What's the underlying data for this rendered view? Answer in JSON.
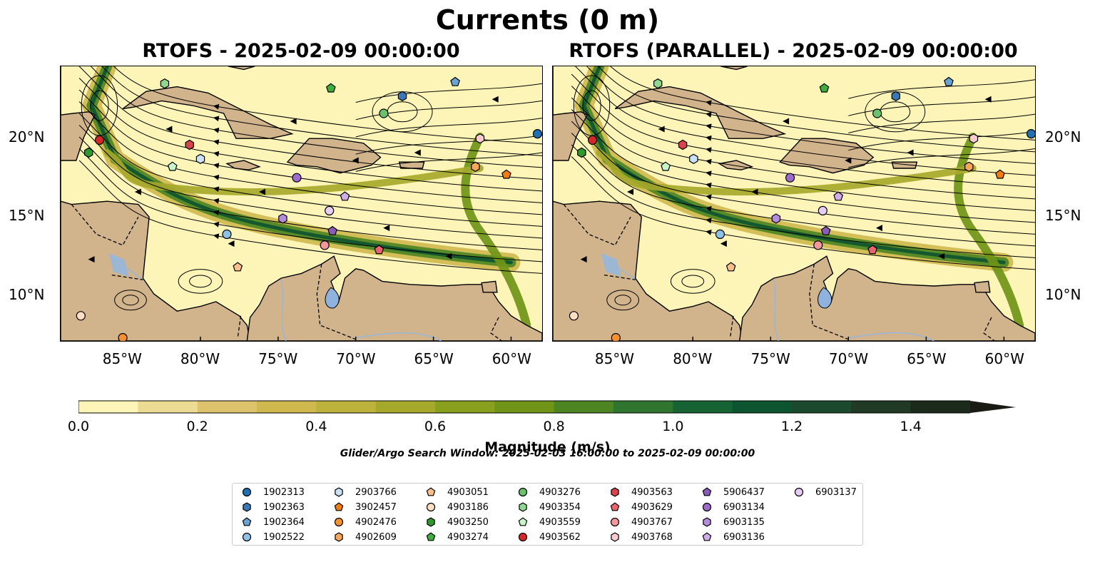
{
  "title": "Currents (0 m)",
  "panels": [
    {
      "title": "RTOFS - 2025-02-09 00:00:00"
    },
    {
      "title": "RTOFS (PARALLEL) - 2025-02-09 00:00:00"
    }
  ],
  "axes": {
    "lat_ticks": [
      "20°N",
      "15°N",
      "10°N"
    ],
    "lon_ticks": [
      "85°W",
      "80°W",
      "75°W",
      "70°W",
      "65°W",
      "60°W"
    ],
    "lon_range": [
      -89,
      -58
    ],
    "lat_range": [
      7,
      24.5
    ]
  },
  "colorbar": {
    "label": "Magnitude (m/s)",
    "ticks": [
      "0.0",
      "0.2",
      "0.4",
      "0.6",
      "0.8",
      "1.0",
      "1.2",
      "1.4"
    ],
    "range": [
      0,
      1.5
    ],
    "colors": [
      "#fdf5b8",
      "#ecdc93",
      "#ddc36c",
      "#cfb94e",
      "#bdb23b",
      "#a6a82b",
      "#89a01f",
      "#6f9418",
      "#4d8523",
      "#2f7530",
      "#166433",
      "#0d5430",
      "#1b4a2e",
      "#203a26",
      "#1c2a1c"
    ]
  },
  "search_window": "Glider/Argo Search Window: 2025-02-03 16:00:00 to 2025-02-09 00:00:00",
  "colors": {
    "land": "#d2b48c",
    "lakes": "#8fb3dd",
    "rivers": "#9bb7d4",
    "ocean_low": "#fdf5b8",
    "ocean_high": "#0d5430"
  },
  "legend": [
    {
      "id": "1902313",
      "marker": "circle",
      "color": "#1f6fb2"
    },
    {
      "id": "1902363",
      "marker": "hexagon",
      "color": "#3a78b5"
    },
    {
      "id": "1902364",
      "marker": "pentagon",
      "color": "#6aa2d4"
    },
    {
      "id": "1902522",
      "marker": "circle",
      "color": "#8fc0e6"
    },
    {
      "id": "2903766",
      "marker": "hexagon",
      "color": "#c9e2f5"
    },
    {
      "id": "3902457",
      "marker": "pentagon",
      "color": "#f07c12"
    },
    {
      "id": "4902476",
      "marker": "circle",
      "color": "#f5922f"
    },
    {
      "id": "4902609",
      "marker": "hexagon",
      "color": "#f8a65c"
    },
    {
      "id": "4903051",
      "marker": "pentagon",
      "color": "#fbbf8b"
    },
    {
      "id": "4903186",
      "marker": "circle",
      "color": "#fde0c3"
    },
    {
      "id": "4903250",
      "marker": "hexagon",
      "color": "#2e9a2e"
    },
    {
      "id": "4903274",
      "marker": "pentagon",
      "color": "#3fae3f"
    },
    {
      "id": "4903276",
      "marker": "circle",
      "color": "#6cc26c"
    },
    {
      "id": "4903354",
      "marker": "hexagon",
      "color": "#8fd68f"
    },
    {
      "id": "4903559",
      "marker": "pentagon",
      "color": "#c8f5c8"
    },
    {
      "id": "4903562",
      "marker": "circle",
      "color": "#d62728"
    },
    {
      "id": "4903563",
      "marker": "hexagon",
      "color": "#d9434a"
    },
    {
      "id": "4903629",
      "marker": "pentagon",
      "color": "#e8656e"
    },
    {
      "id": "4903767",
      "marker": "circle",
      "color": "#f2989c"
    },
    {
      "id": "4903768",
      "marker": "hexagon",
      "color": "#fbcbcd"
    },
    {
      "id": "5906437",
      "marker": "pentagon",
      "color": "#8b5bb8"
    },
    {
      "id": "6903134",
      "marker": "circle",
      "color": "#9d6bcc"
    },
    {
      "id": "6903135",
      "marker": "hexagon",
      "color": "#b58bdb"
    },
    {
      "id": "6903136",
      "marker": "pentagon",
      "color": "#cfaee9"
    },
    {
      "id": "6903137",
      "marker": "circle",
      "color": "#e6cdf5"
    }
  ],
  "floats": [
    {
      "id": "1902313",
      "lon": -58.3,
      "lat": 20.2
    },
    {
      "id": "1902363",
      "lon": -67.0,
      "lat": 22.6
    },
    {
      "id": "1902364",
      "lon": -63.6,
      "lat": 23.5
    },
    {
      "id": "1902522",
      "lon": -78.3,
      "lat": 13.8
    },
    {
      "id": "2903766",
      "lon": -80.0,
      "lat": 18.6
    },
    {
      "id": "3902457",
      "lon": -60.3,
      "lat": 17.6
    },
    {
      "id": "4902476",
      "lon": -85.0,
      "lat": 7.2
    },
    {
      "id": "4902609",
      "lon": -62.3,
      "lat": 18.1
    },
    {
      "id": "4903051",
      "lon": -77.6,
      "lat": 11.7
    },
    {
      "id": "4903186",
      "lon": -87.7,
      "lat": 8.6
    },
    {
      "id": "4903250",
      "lon": -87.2,
      "lat": 19.0
    },
    {
      "id": "4903274",
      "lon": -71.6,
      "lat": 23.1
    },
    {
      "id": "4903276",
      "lon": -68.2,
      "lat": 21.5
    },
    {
      "id": "4903354",
      "lon": -82.3,
      "lat": 23.4
    },
    {
      "id": "4903559",
      "lon": -81.8,
      "lat": 18.1
    },
    {
      "id": "4903562",
      "lon": -86.5,
      "lat": 19.8
    },
    {
      "id": "4903563",
      "lon": -80.7,
      "lat": 19.5
    },
    {
      "id": "4903629",
      "lon": -68.5,
      "lat": 12.8
    },
    {
      "id": "4903767",
      "lon": -72.0,
      "lat": 13.1
    },
    {
      "id": "4903768",
      "lon": -62.0,
      "lat": 19.9
    },
    {
      "id": "5906437",
      "lon": -71.5,
      "lat": 14.0
    },
    {
      "id": "6903134",
      "lon": -73.8,
      "lat": 17.4
    },
    {
      "id": "6903135",
      "lon": -74.7,
      "lat": 14.8
    },
    {
      "id": "6903136",
      "lon": -70.7,
      "lat": 16.2
    },
    {
      "id": "6903137",
      "lon": -71.7,
      "lat": 15.3
    }
  ]
}
